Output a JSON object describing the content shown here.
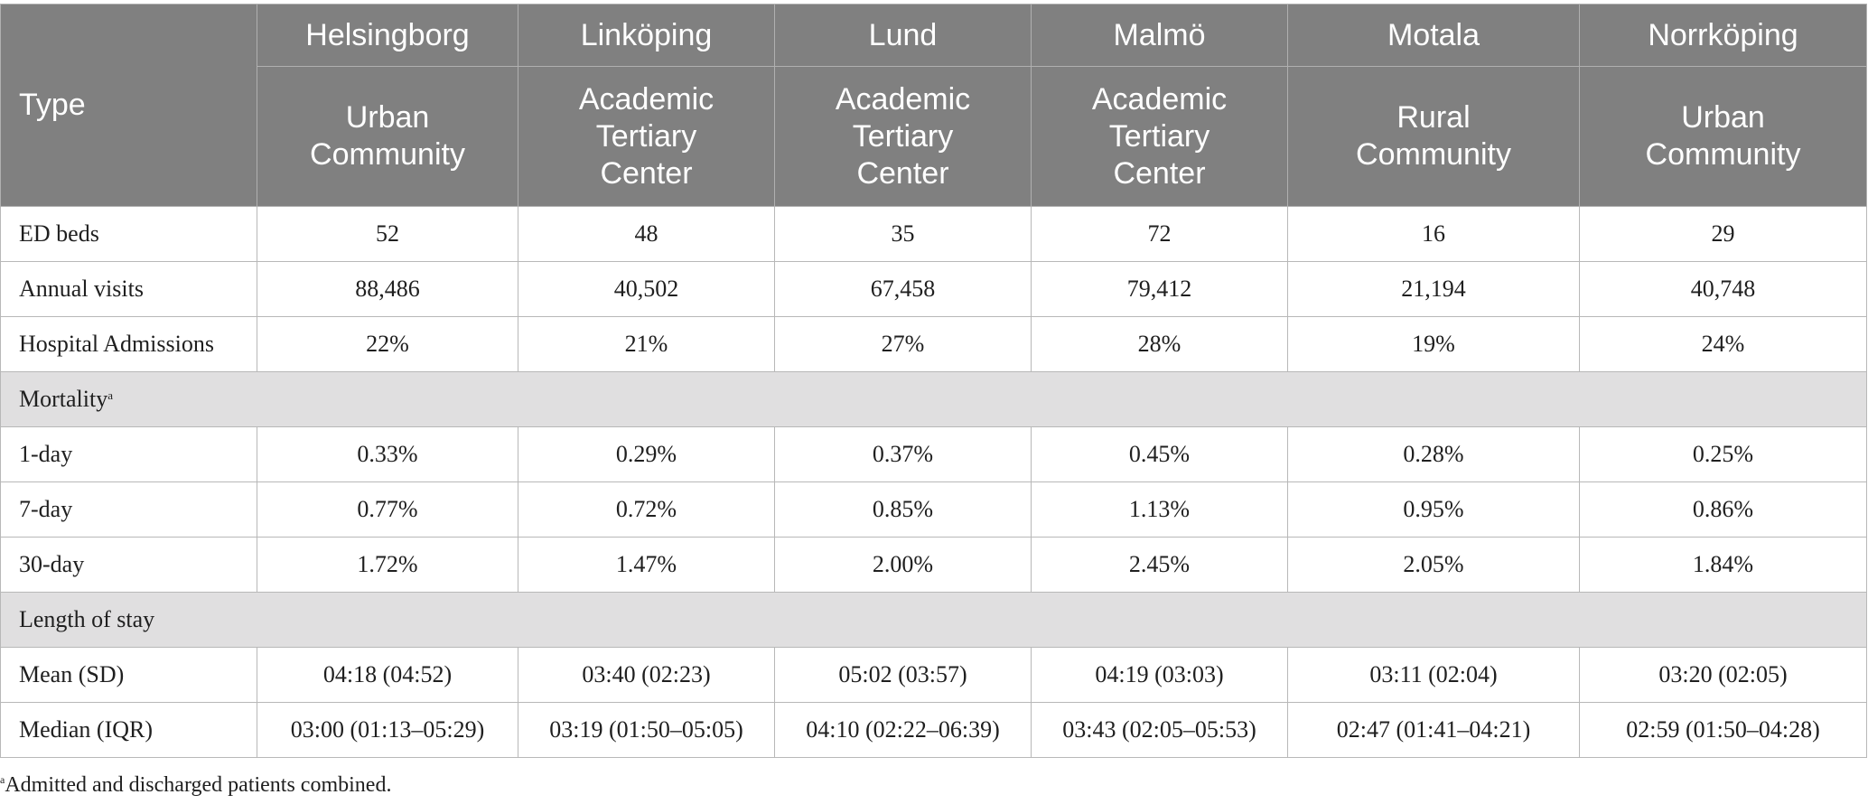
{
  "header": {
    "type_label": "Type",
    "cities": [
      "Helsingborg",
      "Linköping",
      "Lund",
      "Malmö",
      "Motala",
      "Norrköping"
    ],
    "types": [
      "Urban\nCommunity",
      "Academic\nTertiary\nCenter",
      "Academic\nTertiary\nCenter",
      "Academic\nTertiary\nCenter",
      "Rural\nCommunity",
      "Urban\nCommunity"
    ]
  },
  "rows": {
    "ed_beds": {
      "label": "ED beds",
      "values": [
        "52",
        "48",
        "35",
        "72",
        "16",
        "29"
      ]
    },
    "annual_visits": {
      "label": "Annual visits",
      "values": [
        "88,486",
        "40,502",
        "67,458",
        "79,412",
        "21,194",
        "40,748"
      ]
    },
    "hospital_admissions": {
      "label": "Hospital Admissions",
      "values": [
        "22%",
        "21%",
        "27%",
        "28%",
        "19%",
        "24%"
      ]
    },
    "mortality_section": {
      "label": "Mortality",
      "sup": "a"
    },
    "day1": {
      "label": "1-day",
      "values": [
        "0.33%",
        "0.29%",
        "0.37%",
        "0.45%",
        "0.28%",
        "0.25%"
      ]
    },
    "day7": {
      "label": "7-day",
      "values": [
        "0.77%",
        "0.72%",
        "0.85%",
        "1.13%",
        "0.95%",
        "0.86%"
      ]
    },
    "day30": {
      "label": "30-day",
      "values": [
        "1.72%",
        "1.47%",
        "2.00%",
        "2.45%",
        "2.05%",
        "1.84%"
      ]
    },
    "los_section": {
      "label": "Length of stay"
    },
    "mean_sd": {
      "label": "Mean (SD)",
      "values": [
        "04:18 (04:52)",
        "03:40 (02:23)",
        "05:02 (03:57)",
        "04:19 (03:03)",
        "03:11 (02:04)",
        "03:20 (02:05)"
      ]
    },
    "median_iqr": {
      "label": "Median (IQR)",
      "values": [
        "03:00 (01:13–05:29)",
        "03:19 (01:50–05:05)",
        "04:10 (02:22–06:39)",
        "03:43 (02:05–05:53)",
        "02:47 (01:41–04:21)",
        "02:59 (01:50–04:28)"
      ]
    }
  },
  "footnote": {
    "sup": "a",
    "text": "Admitted and discharged patients combined."
  }
}
